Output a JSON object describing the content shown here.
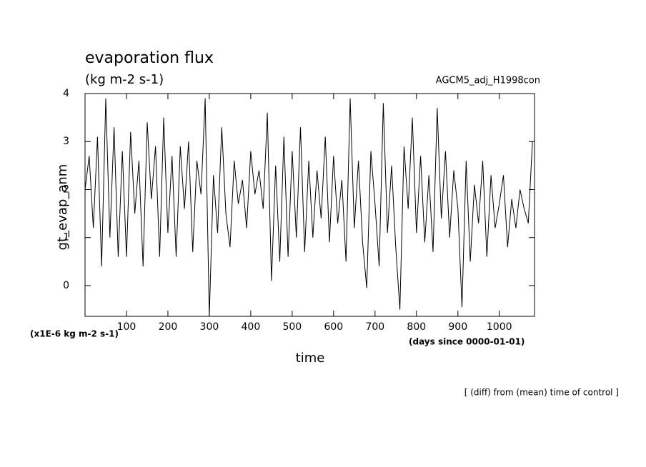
{
  "chart_data": {
    "type": "line",
    "title": "evaporation flux",
    "subtitle": "(kg m-2 s-1)",
    "annotation_right": "AGCM5_adj_H1998con",
    "y_label": "gt_evap_anm",
    "x_label": "time",
    "y_unit": "(x1E-6 kg m-2 s-1)",
    "x_unit": "(days since 0000-01-01)",
    "footer": "[ (diff) from (mean) time of control ]",
    "x": [
      0,
      10,
      20,
      30,
      40,
      50,
      60,
      70,
      80,
      90,
      100,
      110,
      120,
      130,
      140,
      150,
      160,
      170,
      180,
      190,
      200,
      210,
      220,
      230,
      240,
      250,
      260,
      270,
      280,
      290,
      300,
      310,
      320,
      330,
      340,
      350,
      360,
      370,
      380,
      390,
      400,
      410,
      420,
      430,
      440,
      450,
      460,
      470,
      480,
      490,
      500,
      510,
      520,
      530,
      540,
      550,
      560,
      570,
      580,
      590,
      600,
      610,
      620,
      630,
      640,
      650,
      660,
      670,
      680,
      690,
      700,
      710,
      720,
      730,
      740,
      750,
      760,
      770,
      780,
      790,
      800,
      810,
      820,
      830,
      840,
      850,
      860,
      870,
      880,
      890,
      900,
      910,
      920,
      930,
      940,
      950,
      960,
      970,
      980,
      990,
      1000,
      1010,
      1020,
      1030,
      1040,
      1050,
      1060,
      1070,
      1080
    ],
    "series": [
      {
        "color": "#000000",
        "values": [
          2.0,
          2.7,
          1.2,
          3.1,
          0.4,
          3.9,
          1.0,
          3.3,
          0.6,
          2.8,
          0.6,
          3.2,
          1.5,
          2.6,
          0.4,
          3.4,
          1.8,
          2.9,
          0.6,
          3.5,
          1.1,
          2.7,
          0.6,
          2.9,
          1.6,
          3.0,
          0.7,
          2.6,
          1.9,
          3.9,
          -0.64,
          2.3,
          1.1,
          3.3,
          1.5,
          0.8,
          2.6,
          1.7,
          2.2,
          1.2,
          2.8,
          1.9,
          2.4,
          1.6,
          3.6,
          0.1,
          2.5,
          0.5,
          3.1,
          0.6,
          2.8,
          1.0,
          3.3,
          0.7,
          2.6,
          1.0,
          2.4,
          1.4,
          3.1,
          0.9,
          2.7,
          1.3,
          2.2,
          0.5,
          3.9,
          1.2,
          2.6,
          0.9,
          -0.05,
          2.8,
          1.7,
          0.4,
          3.8,
          1.1,
          2.5,
          0.8,
          -0.5,
          2.9,
          1.6,
          3.5,
          1.1,
          2.7,
          0.9,
          2.3,
          0.7,
          3.7,
          1.4,
          2.8,
          1.0,
          2.4,
          1.6,
          -0.45,
          2.6,
          0.5,
          2.1,
          1.3,
          2.6,
          0.6,
          2.3,
          1.2,
          1.7,
          2.3,
          0.8,
          1.8,
          1.2,
          2.0,
          1.6,
          1.3,
          3.0
        ]
      }
    ],
    "xlim": [
      0,
      1085
    ],
    "ylim": [
      -0.64,
      4
    ],
    "xticks": [
      100,
      200,
      300,
      400,
      500,
      600,
      700,
      800,
      900,
      1000
    ],
    "yticks": [
      0,
      1,
      2,
      3,
      4
    ]
  }
}
